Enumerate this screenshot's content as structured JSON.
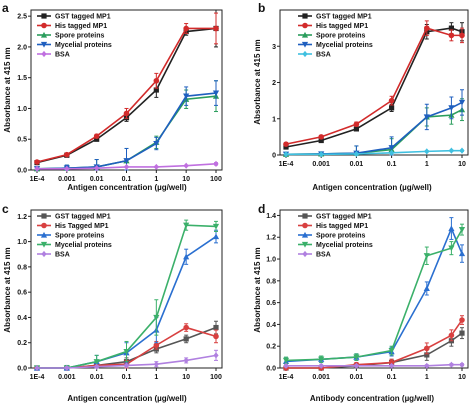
{
  "chart_data": [
    {
      "panel": "a",
      "type": "line",
      "xlabel": "Antigen concentration (µg/well)",
      "ylabel": "Absorbance at 415 nm",
      "x_tick_labels": [
        "1E-4",
        "0.001",
        "0.01",
        "0.1",
        "1",
        "10",
        "100"
      ],
      "x": [
        0.0001,
        0.001,
        0.01,
        0.1,
        1,
        10,
        100
      ],
      "x_scale": "log",
      "xlim": [
        0.0001,
        100
      ],
      "ylim": [
        0,
        2.6
      ],
      "y_ticks": [
        "0.0",
        "0.5",
        "1.0",
        "1.5",
        "2.0",
        "2.5"
      ],
      "y_tick_values": [
        0,
        0.5,
        1.0,
        1.5,
        2.0,
        2.5
      ],
      "legend_position": "top-left",
      "series": [
        {
          "name": "GST tagged MP1",
          "color": "#222222",
          "marker": "square",
          "values": [
            0.12,
            0.24,
            0.5,
            0.85,
            1.3,
            2.25,
            2.3
          ],
          "errors": [
            0.02,
            0.02,
            0.03,
            0.06,
            0.12,
            0.06,
            0.3
          ]
        },
        {
          "name": "His tagged MP1",
          "color": "#d22b2b",
          "marker": "circle",
          "values": [
            0.13,
            0.25,
            0.55,
            0.92,
            1.45,
            2.3,
            2.3
          ],
          "errors": [
            0.02,
            0.02,
            0.03,
            0.08,
            0.12,
            0.08,
            0.25
          ]
        },
        {
          "name": "Spore proteins",
          "color": "#2a9d5c",
          "marker": "triangle-up",
          "values": [
            0.02,
            0.03,
            0.05,
            0.15,
            0.45,
            1.15,
            1.2
          ],
          "errors": [
            0.02,
            0.05,
            0.12,
            0.2,
            0.1,
            0.15,
            0.25
          ]
        },
        {
          "name": "Mycelial proteins",
          "color": "#1f5fbf",
          "marker": "triangle-down",
          "values": [
            0.02,
            0.03,
            0.05,
            0.15,
            0.43,
            1.2,
            1.25
          ],
          "errors": [
            0.02,
            0.05,
            0.12,
            0.2,
            0.1,
            0.15,
            0.2
          ]
        },
        {
          "name": "BSA",
          "color": "#c070e0",
          "marker": "diamond",
          "values": [
            0.02,
            0.02,
            0.03,
            0.05,
            0.05,
            0.07,
            0.1
          ],
          "errors": [
            0.01,
            0.01,
            0.01,
            0.01,
            0.01,
            0.01,
            0.02
          ]
        }
      ]
    },
    {
      "panel": "b",
      "type": "line",
      "xlabel": "Antigen concentration (µg/well)",
      "ylabel": "Absorbance at 415 nm",
      "x_tick_labels": [
        "1E-4",
        "0.001",
        "0.01",
        "0.1",
        "1",
        "10"
      ],
      "x": [
        0.0001,
        0.001,
        0.01,
        0.1,
        1,
        5,
        10
      ],
      "x_scale": "log",
      "xlim": [
        0.0001,
        10
      ],
      "ylim": [
        0,
        4
      ],
      "y_ticks": [
        "0",
        "1",
        "2",
        "3"
      ],
      "y_tick_values": [
        0,
        1,
        2,
        3
      ],
      "legend_position": "top-left",
      "series": [
        {
          "name": "GST tagged MP1",
          "color": "#222222",
          "marker": "square",
          "values": [
            0.22,
            0.4,
            0.72,
            1.3,
            3.4,
            3.5,
            3.4
          ],
          "errors": [
            0.03,
            0.04,
            0.05,
            0.1,
            0.2,
            0.15,
            0.25
          ]
        },
        {
          "name": "His tagged MP1",
          "color": "#d22b2b",
          "marker": "circle",
          "values": [
            0.3,
            0.5,
            0.85,
            1.5,
            3.5,
            3.3,
            3.3
          ],
          "errors": [
            0.03,
            0.04,
            0.06,
            0.12,
            0.2,
            0.15,
            0.2
          ]
        },
        {
          "name": "Spore proteins",
          "color": "#2a9d5c",
          "marker": "triangle-up",
          "values": [
            0.02,
            0.03,
            0.05,
            0.15,
            1.05,
            1.1,
            1.25
          ],
          "errors": [
            0.02,
            0.05,
            0.2,
            0.3,
            0.25,
            0.25,
            0.3
          ]
        },
        {
          "name": "Mycelial proteins",
          "color": "#1f5fbf",
          "marker": "triangle-down",
          "values": [
            0.02,
            0.03,
            0.05,
            0.2,
            1.05,
            1.3,
            1.45
          ],
          "errors": [
            0.02,
            0.05,
            0.2,
            0.3,
            0.35,
            0.3,
            0.35
          ]
        },
        {
          "name": "BSA",
          "color": "#40c0e0",
          "marker": "diamond",
          "values": [
            0.02,
            0.02,
            0.03,
            0.06,
            0.1,
            0.12,
            0.12
          ],
          "errors": [
            0.01,
            0.01,
            0.01,
            0.01,
            0.02,
            0.02,
            0.02
          ]
        }
      ]
    },
    {
      "panel": "c",
      "type": "line",
      "xlabel": "Antigen concentration (µg/well)",
      "ylabel": "Absorbance at 415 nm",
      "x_tick_labels": [
        "1E-4",
        "0.001",
        "0.01",
        "0.1",
        "1",
        "10",
        "100"
      ],
      "x": [
        0.0001,
        0.001,
        0.01,
        0.1,
        1,
        10,
        100
      ],
      "x_scale": "log",
      "xlim": [
        0.0001,
        100
      ],
      "ylim": [
        0,
        1.25
      ],
      "y_ticks": [
        "0.0",
        "0.2",
        "0.4",
        "0.6",
        "0.8",
        "1.0",
        "1.2"
      ],
      "y_tick_values": [
        0,
        0.2,
        0.4,
        0.6,
        0.8,
        1.0,
        1.2
      ],
      "legend_position": "top-left",
      "series": [
        {
          "name": "GST tagged MP1",
          "color": "#555555",
          "marker": "square",
          "values": [
            0.0,
            0.0,
            0.02,
            0.05,
            0.15,
            0.23,
            0.32
          ],
          "errors": [
            0.0,
            0.01,
            0.02,
            0.03,
            0.03,
            0.03,
            0.05
          ]
        },
        {
          "name": "His Tagged MP1",
          "color": "#d84040",
          "marker": "circle",
          "values": [
            0.0,
            0.0,
            0.02,
            0.03,
            0.18,
            0.32,
            0.25
          ],
          "errors": [
            0.0,
            0.01,
            0.02,
            0.03,
            0.03,
            0.03,
            0.05
          ]
        },
        {
          "name": "Spore proteins",
          "color": "#2a6fd0",
          "marker": "triangle-up",
          "values": [
            0.0,
            0.0,
            0.05,
            0.12,
            0.3,
            0.88,
            1.04
          ],
          "errors": [
            0.0,
            0.02,
            0.05,
            0.08,
            0.1,
            0.06,
            0.05
          ]
        },
        {
          "name": "Mycelial proteins",
          "color": "#3bb06a",
          "marker": "triangle-down",
          "values": [
            0.0,
            0.0,
            0.05,
            0.13,
            0.4,
            1.13,
            1.12
          ],
          "errors": [
            0.0,
            0.02,
            0.05,
            0.08,
            0.14,
            0.04,
            0.04
          ]
        },
        {
          "name": "BSA",
          "color": "#b080e0",
          "marker": "diamond",
          "values": [
            0.0,
            0.0,
            0.01,
            0.02,
            0.03,
            0.06,
            0.1
          ],
          "errors": [
            0.0,
            0.01,
            0.01,
            0.01,
            0.02,
            0.02,
            0.04
          ]
        }
      ]
    },
    {
      "panel": "d",
      "type": "line",
      "xlabel": "Antibody concentration (µg/well)",
      "ylabel": "Absorbance at 415 nm",
      "x_tick_labels": [
        "1E-4",
        "0.001",
        "0.01",
        "0.1",
        "1",
        "10"
      ],
      "x": [
        0.0001,
        0.001,
        0.01,
        0.1,
        1,
        5,
        10
      ],
      "x_scale": "log",
      "xlim": [
        0.0001,
        10
      ],
      "ylim": [
        0,
        1.45
      ],
      "y_ticks": [
        "0.0",
        "0.2",
        "0.4",
        "0.6",
        "0.8",
        "1.0",
        "1.2",
        "1.4"
      ],
      "y_tick_values": [
        0,
        0.2,
        0.4,
        0.6,
        0.8,
        1.0,
        1.2,
        1.4
      ],
      "legend_position": "top-left",
      "series": [
        {
          "name": "GST tagged MP1",
          "color": "#555555",
          "marker": "square",
          "values": [
            0.0,
            0.0,
            0.02,
            0.05,
            0.12,
            0.25,
            0.32
          ],
          "errors": [
            0.0,
            0.01,
            0.02,
            0.03,
            0.05,
            0.05,
            0.05
          ]
        },
        {
          "name": "His tagged MP1",
          "color": "#d84040",
          "marker": "circle",
          "values": [
            0.0,
            0.0,
            0.03,
            0.05,
            0.18,
            0.3,
            0.44
          ],
          "errors": [
            0.0,
            0.01,
            0.02,
            0.03,
            0.05,
            0.05,
            0.04
          ]
        },
        {
          "name": "Spore proteins",
          "color": "#2a6fd0",
          "marker": "triangle-up",
          "values": [
            0.06,
            0.08,
            0.1,
            0.15,
            0.73,
            1.28,
            1.05
          ],
          "errors": [
            0.03,
            0.03,
            0.03,
            0.04,
            0.06,
            0.1,
            0.08
          ]
        },
        {
          "name": "Mycelial proteins",
          "color": "#3bb06a",
          "marker": "triangle-down",
          "values": [
            0.07,
            0.08,
            0.1,
            0.16,
            1.03,
            1.1,
            1.27
          ],
          "errors": [
            0.03,
            0.03,
            0.03,
            0.04,
            0.08,
            0.06,
            0.05
          ]
        },
        {
          "name": "BSA",
          "color": "#b080e0",
          "marker": "diamond",
          "values": [
            0.02,
            0.02,
            0.02,
            0.02,
            0.02,
            0.03,
            0.03
          ],
          "errors": [
            0.01,
            0.01,
            0.01,
            0.01,
            0.01,
            0.01,
            0.01
          ]
        }
      ]
    }
  ]
}
